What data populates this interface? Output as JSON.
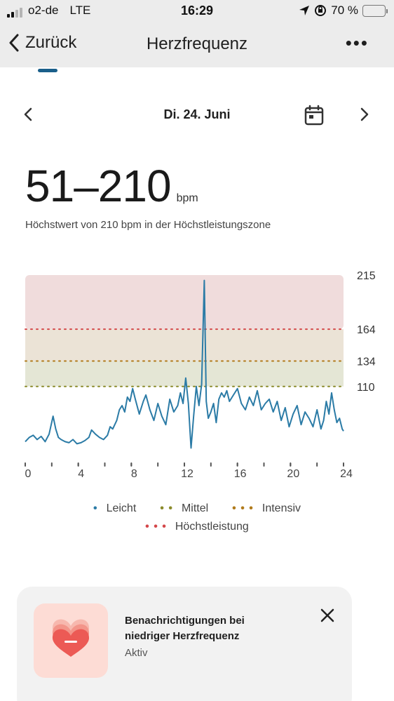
{
  "status_bar": {
    "carrier": "o2-de",
    "network": "LTE",
    "time": "16:29",
    "battery_text": "70 %",
    "battery_level": 0.7
  },
  "header": {
    "back_label": "Zurück",
    "title": "Herzfrequenz",
    "more_label": "•••"
  },
  "date_nav": {
    "date": "Di. 24. Juni"
  },
  "summary": {
    "range": "51–210",
    "unit": "bpm",
    "description": "Höchstwert von 210 bpm in der Höchstleistungszone"
  },
  "chart_data": {
    "type": "line",
    "x_ticks": [
      "0",
      "4",
      "8",
      "12",
      "16",
      "20",
      "24"
    ],
    "y_ticks": [
      "215",
      "164",
      "134",
      "110"
    ],
    "xlim": [
      0,
      24
    ],
    "ylim": [
      51,
      215
    ],
    "zones": [
      {
        "name": "Mittel",
        "from": 110,
        "to": 134,
        "color": "#e4e6d5"
      },
      {
        "name": "Intensiv",
        "from": 134,
        "to": 164,
        "color": "#ebe3d6"
      },
      {
        "name": "Höchstleistung",
        "from": 164,
        "to": 215,
        "color": "#f0dcdc"
      }
    ],
    "series": [
      {
        "color": "#2b7ba6",
        "x": [
          0,
          0.3,
          0.6,
          0.9,
          1.2,
          1.5,
          1.8,
          2.1,
          2.3,
          2.5,
          2.7,
          3.0,
          3.3,
          3.6,
          3.9,
          4.2,
          4.5,
          4.8,
          5.0,
          5.3,
          5.6,
          5.9,
          6.2,
          6.4,
          6.6,
          6.9,
          7.1,
          7.3,
          7.5,
          7.7,
          7.9,
          8.1,
          8.3,
          8.6,
          8.9,
          9.1,
          9.4,
          9.7,
          10.0,
          10.3,
          10.6,
          10.9,
          11.2,
          11.5,
          11.7,
          11.9,
          12.1,
          12.3,
          12.5,
          12.7,
          12.9,
          13.1,
          13.3,
          13.5,
          13.65,
          13.8,
          14.0,
          14.2,
          14.4,
          14.6,
          14.8,
          15.0,
          15.2,
          15.4,
          15.7,
          16.0,
          16.3,
          16.6,
          16.9,
          17.2,
          17.5,
          17.8,
          18.1,
          18.4,
          18.7,
          19.0,
          19.3,
          19.6,
          19.9,
          20.2,
          20.5,
          20.8,
          21.1,
          21.4,
          21.7,
          22.0,
          22.3,
          22.5,
          22.7,
          22.9,
          23.1,
          23.3,
          23.5,
          23.7,
          23.9,
          24.0
        ],
        "y": [
          58,
          62,
          64,
          60,
          63,
          58,
          65,
          82,
          70,
          62,
          60,
          58,
          57,
          60,
          56,
          57,
          59,
          62,
          69,
          65,
          62,
          60,
          64,
          72,
          70,
          78,
          88,
          92,
          86,
          100,
          96,
          108,
          98,
          84,
          96,
          102,
          88,
          78,
          94,
          82,
          74,
          98,
          86,
          92,
          104,
          94,
          118,
          94,
          52,
          82,
          110,
          92,
          112,
          210,
          96,
          80,
          86,
          94,
          76,
          98,
          104,
          100,
          106,
          96,
          102,
          108,
          94,
          88,
          100,
          92,
          106,
          88,
          94,
          98,
          86,
          96,
          78,
          90,
          72,
          84,
          92,
          74,
          86,
          80,
          72,
          88,
          70,
          78,
          96,
          84,
          104,
          88,
          76,
          80,
          70,
          68
        ]
      }
    ]
  },
  "legend": {
    "items": [
      {
        "label": "Leicht",
        "color": "#2b7ba6",
        "marker": "•"
      },
      {
        "label": "Mittel",
        "color": "#8a8a2a",
        "marker": "• •"
      },
      {
        "label": "Intensiv",
        "color": "#b07a1a",
        "marker": "• • •"
      },
      {
        "label": "Höchstleistung",
        "color": "#d4474a",
        "marker": "• • •"
      }
    ]
  },
  "notification_card": {
    "title": "Benachrichtigungen bei niedriger Herzfrequenz",
    "status": "Aktiv"
  }
}
